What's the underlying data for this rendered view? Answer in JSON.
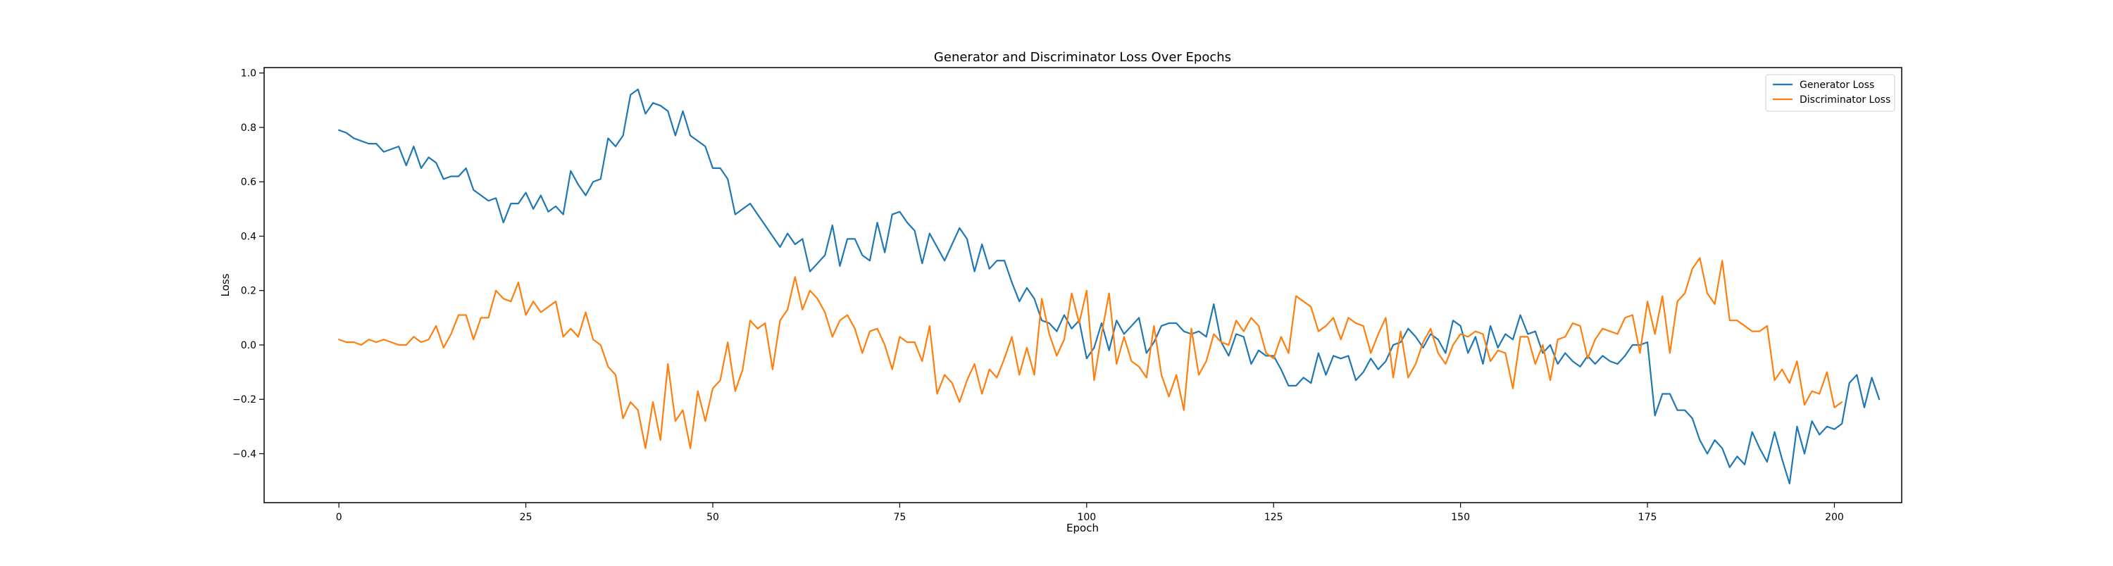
{
  "chart_data": {
    "type": "line",
    "title": "Generator and Discriminator Loss Over Epochs",
    "xlabel": "Epoch",
    "ylabel": "Loss",
    "xlim": [
      -10,
      209
    ],
    "ylim": [
      -0.58,
      1.02
    ],
    "xticks": [
      0,
      25,
      50,
      75,
      100,
      125,
      150,
      175,
      200
    ],
    "xtick_labels": [
      "0",
      "25",
      "50",
      "75",
      "100",
      "125",
      "150",
      "175",
      "200"
    ],
    "yticks": [
      -0.4,
      -0.2,
      0.0,
      0.2,
      0.4,
      0.6,
      0.8,
      1.0
    ],
    "ytick_labels": [
      "−0.4",
      "−0.2",
      "0.0",
      "0.2",
      "0.4",
      "0.6",
      "0.8",
      "1.0"
    ],
    "grid": false,
    "legend_position": "top-right",
    "x_start": 0,
    "x_step": 1,
    "series": [
      {
        "name": "Generator Loss",
        "color": "#1f77b4",
        "values": [
          0.79,
          0.78,
          0.76,
          0.75,
          0.74,
          0.74,
          0.71,
          0.72,
          0.73,
          0.66,
          0.73,
          0.65,
          0.69,
          0.67,
          0.61,
          0.62,
          0.62,
          0.65,
          0.57,
          0.55,
          0.53,
          0.54,
          0.45,
          0.52,
          0.52,
          0.56,
          0.5,
          0.55,
          0.49,
          0.51,
          0.48,
          0.64,
          0.59,
          0.55,
          0.6,
          0.61,
          0.76,
          0.73,
          0.77,
          0.92,
          0.94,
          0.85,
          0.89,
          0.88,
          0.86,
          0.77,
          0.86,
          0.77,
          0.75,
          0.73,
          0.65,
          0.65,
          0.61,
          0.48,
          0.5,
          0.52,
          0.48,
          0.44,
          0.4,
          0.36,
          0.41,
          0.37,
          0.39,
          0.27,
          0.3,
          0.33,
          0.44,
          0.29,
          0.39,
          0.39,
          0.33,
          0.31,
          0.45,
          0.34,
          0.48,
          0.49,
          0.45,
          0.42,
          0.3,
          0.41,
          0.36,
          0.31,
          0.37,
          0.43,
          0.39,
          0.27,
          0.37,
          0.28,
          0.31,
          0.31,
          0.23,
          0.16,
          0.21,
          0.17,
          0.09,
          0.08,
          0.05,
          0.11,
          0.06,
          0.09,
          -0.05,
          -0.01,
          0.08,
          -0.02,
          0.09,
          0.04,
          0.07,
          0.1,
          -0.03,
          0.01,
          0.07,
          0.08,
          0.08,
          0.05,
          0.04,
          0.05,
          0.03,
          0.15,
          0.01,
          -0.04,
          0.04,
          0.03,
          -0.07,
          -0.02,
          -0.04,
          -0.04,
          -0.09,
          -0.15,
          -0.15,
          -0.12,
          -0.14,
          -0.03,
          -0.11,
          -0.04,
          -0.05,
          -0.04,
          -0.13,
          -0.1,
          -0.05,
          -0.09,
          -0.06,
          0.0,
          0.01,
          0.06,
          0.03,
          -0.01,
          0.04,
          0.02,
          -0.03,
          0.09,
          0.07,
          -0.03,
          0.03,
          -0.07,
          0.07,
          -0.01,
          0.04,
          0.02,
          0.11,
          0.04,
          0.05,
          -0.03,
          0.0,
          -0.07,
          -0.03,
          -0.06,
          -0.08,
          -0.04,
          -0.07,
          -0.04,
          -0.06,
          -0.07,
          -0.04,
          0.0,
          0.0,
          0.01,
          -0.26,
          -0.18,
          -0.18,
          -0.24,
          -0.24,
          -0.27,
          -0.35,
          -0.4,
          -0.35,
          -0.38,
          -0.45,
          -0.41,
          -0.44,
          -0.32,
          -0.38,
          -0.43,
          -0.32,
          -0.42,
          -0.51,
          -0.3,
          -0.4,
          -0.28,
          -0.33,
          -0.3,
          -0.31,
          -0.29,
          -0.14,
          -0.11,
          -0.23,
          -0.12,
          -0.2
        ]
      },
      {
        "name": "Discriminator Loss",
        "color": "#ff7f0e",
        "values": [
          0.02,
          0.01,
          0.01,
          0.0,
          0.02,
          0.01,
          0.02,
          0.01,
          0.0,
          0.0,
          0.03,
          0.01,
          0.02,
          0.07,
          -0.01,
          0.04,
          0.11,
          0.11,
          0.02,
          0.1,
          0.1,
          0.2,
          0.17,
          0.16,
          0.23,
          0.11,
          0.16,
          0.12,
          0.14,
          0.16,
          0.03,
          0.06,
          0.03,
          0.12,
          0.02,
          0.0,
          -0.08,
          -0.11,
          -0.27,
          -0.21,
          -0.24,
          -0.38,
          -0.21,
          -0.35,
          -0.07,
          -0.28,
          -0.24,
          -0.38,
          -0.17,
          -0.28,
          -0.16,
          -0.13,
          0.01,
          -0.17,
          -0.09,
          0.09,
          0.06,
          0.08,
          -0.09,
          0.09,
          0.13,
          0.25,
          0.13,
          0.2,
          0.17,
          0.12,
          0.03,
          0.09,
          0.11,
          0.06,
          -0.03,
          0.05,
          0.06,
          0.0,
          -0.09,
          0.03,
          0.01,
          0.01,
          -0.06,
          0.07,
          -0.18,
          -0.11,
          -0.14,
          -0.21,
          -0.13,
          -0.07,
          -0.18,
          -0.09,
          -0.12,
          -0.05,
          0.03,
          -0.11,
          -0.01,
          -0.11,
          0.17,
          0.04,
          -0.04,
          0.02,
          0.19,
          0.08,
          0.2,
          -0.13,
          0.04,
          0.19,
          -0.07,
          0.03,
          -0.06,
          -0.08,
          -0.12,
          0.07,
          -0.11,
          -0.19,
          -0.11,
          -0.24,
          0.06,
          -0.11,
          -0.06,
          0.04,
          0.01,
          0.0,
          0.09,
          0.05,
          0.1,
          0.07,
          -0.03,
          -0.05,
          0.03,
          -0.03,
          0.18,
          0.16,
          0.14,
          0.05,
          0.07,
          0.1,
          0.02,
          0.1,
          0.08,
          0.07,
          -0.03,
          0.04,
          0.1,
          -0.12,
          0.05,
          -0.12,
          -0.07,
          0.01,
          0.06,
          -0.03,
          -0.07,
          0.0,
          0.04,
          0.03,
          0.05,
          0.04,
          -0.06,
          -0.02,
          -0.03,
          -0.16,
          0.03,
          0.03,
          -0.07,
          0.0,
          -0.13,
          0.02,
          0.03,
          0.08,
          0.07,
          -0.05,
          0.02,
          0.06,
          0.05,
          0.04,
          0.1,
          0.11,
          -0.03,
          0.16,
          0.04,
          0.18,
          -0.03,
          0.16,
          0.19,
          0.28,
          0.32,
          0.19,
          0.15,
          0.31,
          0.09,
          0.09,
          0.07,
          0.05,
          0.05,
          0.07,
          -0.13,
          -0.09,
          -0.14,
          -0.06,
          -0.22,
          -0.17,
          -0.18,
          -0.1,
          -0.23,
          -0.21
        ]
      }
    ]
  }
}
